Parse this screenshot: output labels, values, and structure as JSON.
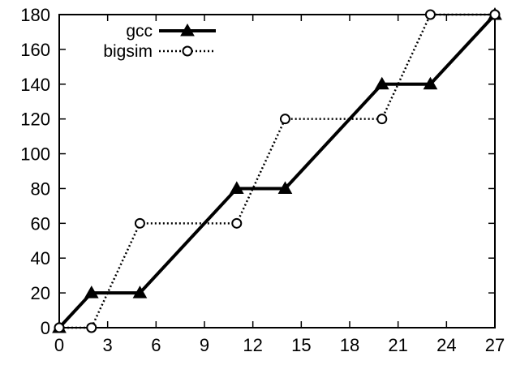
{
  "chart_data": {
    "type": "line",
    "title": "",
    "xlabel": "",
    "ylabel": "",
    "xlim": [
      0,
      27
    ],
    "ylim": [
      0,
      180
    ],
    "xticks": [
      0,
      3,
      6,
      9,
      12,
      15,
      18,
      21,
      24,
      27
    ],
    "yticks": [
      0,
      20,
      40,
      60,
      80,
      100,
      120,
      140,
      160,
      180
    ],
    "grid": false,
    "legend_position": "top-left",
    "series": [
      {
        "name": "gcc",
        "marker": "filled-triangle",
        "line_style": "solid",
        "color": "#000000",
        "x": [
          0,
          2,
          5,
          11,
          14,
          20,
          23,
          27
        ],
        "y": [
          0,
          20,
          20,
          80,
          80,
          140,
          140,
          180
        ]
      },
      {
        "name": "bigsim",
        "marker": "open-circle",
        "line_style": "dotted",
        "color": "#000000",
        "x": [
          0,
          2,
          5,
          11,
          14,
          20,
          23,
          27
        ],
        "y": [
          0,
          0,
          60,
          60,
          120,
          120,
          180,
          180
        ]
      }
    ]
  }
}
